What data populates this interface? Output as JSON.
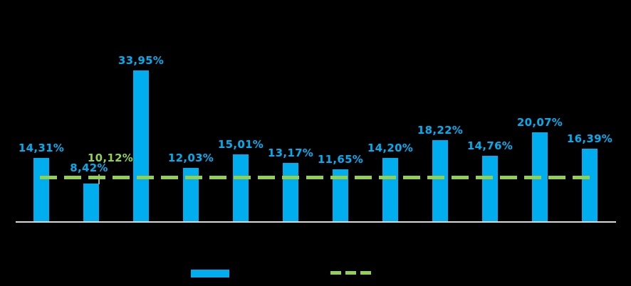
{
  "chart_data": {
    "type": "bar",
    "title": "",
    "xlabel": "",
    "ylabel": "",
    "grid": false,
    "background": "#000000",
    "values": [
      14.31,
      8.42,
      33.95,
      12.03,
      15.01,
      13.17,
      11.65,
      14.2,
      18.22,
      14.76,
      20.07,
      16.39
    ],
    "labels": [
      "14,31%",
      "8,42%",
      "33,95%",
      "12,03%",
      "15,01%",
      "13,17%",
      "11,65%",
      "14,20%",
      "18,22%",
      "14,76%",
      "20,07%",
      "16,39%"
    ],
    "average_line": {
      "value": 10.12,
      "label": "10,12%",
      "style": "dashed",
      "color": "#92D050"
    },
    "colors": {
      "bar": "#00AEEF",
      "data_label": "#00AEEF",
      "average_line": "#92D050",
      "average_label": "#92D050",
      "axis_line": "#D9D9D9",
      "leader_line": "#A6A6A6",
      "background": "#000000"
    },
    "legend": {
      "position": "bottom",
      "entries": [
        {
          "swatch": "bar",
          "swatch_color": "#00AEEF",
          "label": ""
        },
        {
          "swatch": "dashed-line",
          "swatch_color": "#92D050",
          "label": ""
        }
      ]
    }
  }
}
